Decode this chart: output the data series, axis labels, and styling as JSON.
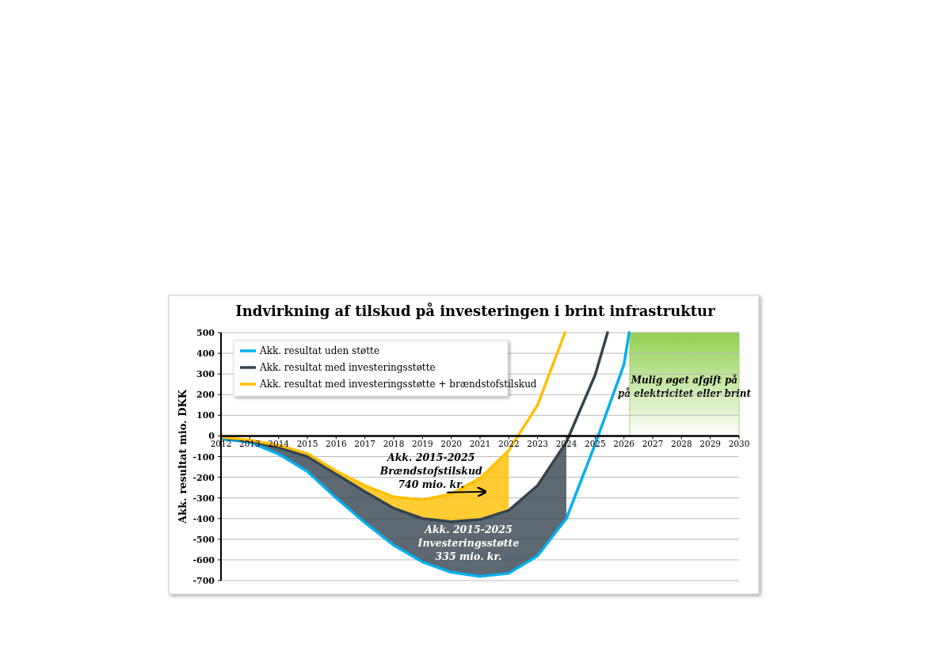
{
  "chart_data": {
    "type": "line",
    "title": "Indvirkning af tilskud på investeringen i brint infrastruktur",
    "ylabel": "Akk. resultat mio. DKK",
    "xlim": [
      2012,
      2030
    ],
    "xticks": [
      2012,
      2013,
      2014,
      2015,
      2016,
      2017,
      2018,
      2019,
      2020,
      2021,
      2022,
      2023,
      2024,
      2025,
      2026,
      2027,
      2028,
      2029,
      2030
    ],
    "ylim": [
      -700,
      500
    ],
    "yticks": [
      -700,
      -600,
      -500,
      -400,
      -300,
      -200,
      -100,
      0,
      100,
      200,
      300,
      400,
      500
    ],
    "grid": "y",
    "legend": "top left",
    "series": [
      {
        "name": "Akk. resultat uden støtte",
        "color": "#00b0f0",
        "x": [
          2012,
          2013,
          2014,
          2015,
          2016,
          2017,
          2018,
          2019,
          2020,
          2021,
          2022,
          2023,
          2024,
          2025,
          2026,
          2026.18
        ],
        "values": [
          -15,
          -30,
          -88,
          -172,
          -300,
          -420,
          -529,
          -610,
          -660,
          -680,
          -665,
          -580,
          -400,
          -40,
          345,
          500
        ]
      },
      {
        "name": "Akk. resultat med investeringsstøtte",
        "color": "#34444f",
        "x": [
          2012,
          2013,
          2014,
          2015,
          2016,
          2017,
          2018,
          2019,
          2020,
          2021,
          2022,
          2023,
          2024,
          2025,
          2025.43
        ],
        "values": [
          -5,
          -25,
          -55,
          -100,
          -185,
          -270,
          -350,
          -400,
          -415,
          -405,
          -360,
          -240,
          -30,
          295,
          500
        ],
        "lower": [
          -15,
          -30,
          -88,
          -172,
          -300,
          -420,
          -529,
          -610,
          -660,
          -680,
          -665,
          -580,
          -400,
          null,
          null
        ],
        "upper": [
          -5,
          -25,
          -55,
          -100,
          -185,
          -270,
          -350,
          -400,
          -415,
          -405,
          -360,
          -240,
          -30,
          null,
          null
        ]
      },
      {
        "name": "Akk. resultat med investeringsstøtte + brændstofstilskud",
        "color": "#ffc000",
        "x": [
          2012,
          2013,
          2014,
          2015,
          2016,
          2017,
          2018,
          2019,
          2020,
          2021,
          2022,
          2023,
          2023.95
        ],
        "values": [
          -5,
          -20,
          -45,
          -85,
          -170,
          -240,
          -295,
          -310,
          -280,
          -205,
          -70,
          149,
          500
        ],
        "lower": [
          null,
          null,
          null,
          -100,
          -185,
          -270,
          -350,
          -400,
          -415,
          -405,
          -360,
          null,
          null
        ],
        "upper": [
          null,
          null,
          null,
          -85,
          -170,
          -240,
          -295,
          -310,
          -280,
          -205,
          -70,
          null,
          null
        ]
      }
    ],
    "bands": [
      {
        "axis": "x",
        "from": 2026.2,
        "to": 2030,
        "color": "#92d050",
        "label": "Mulig øget afgift på\npå elektricitet eller brint"
      }
    ],
    "annotations": [
      "Akk. 2015-2025\nBrændstofstilskud\n740  mio. kr.",
      "Akk. 2015-2025\nInvesteringsstøtte\n335 mio. kr."
    ]
  }
}
